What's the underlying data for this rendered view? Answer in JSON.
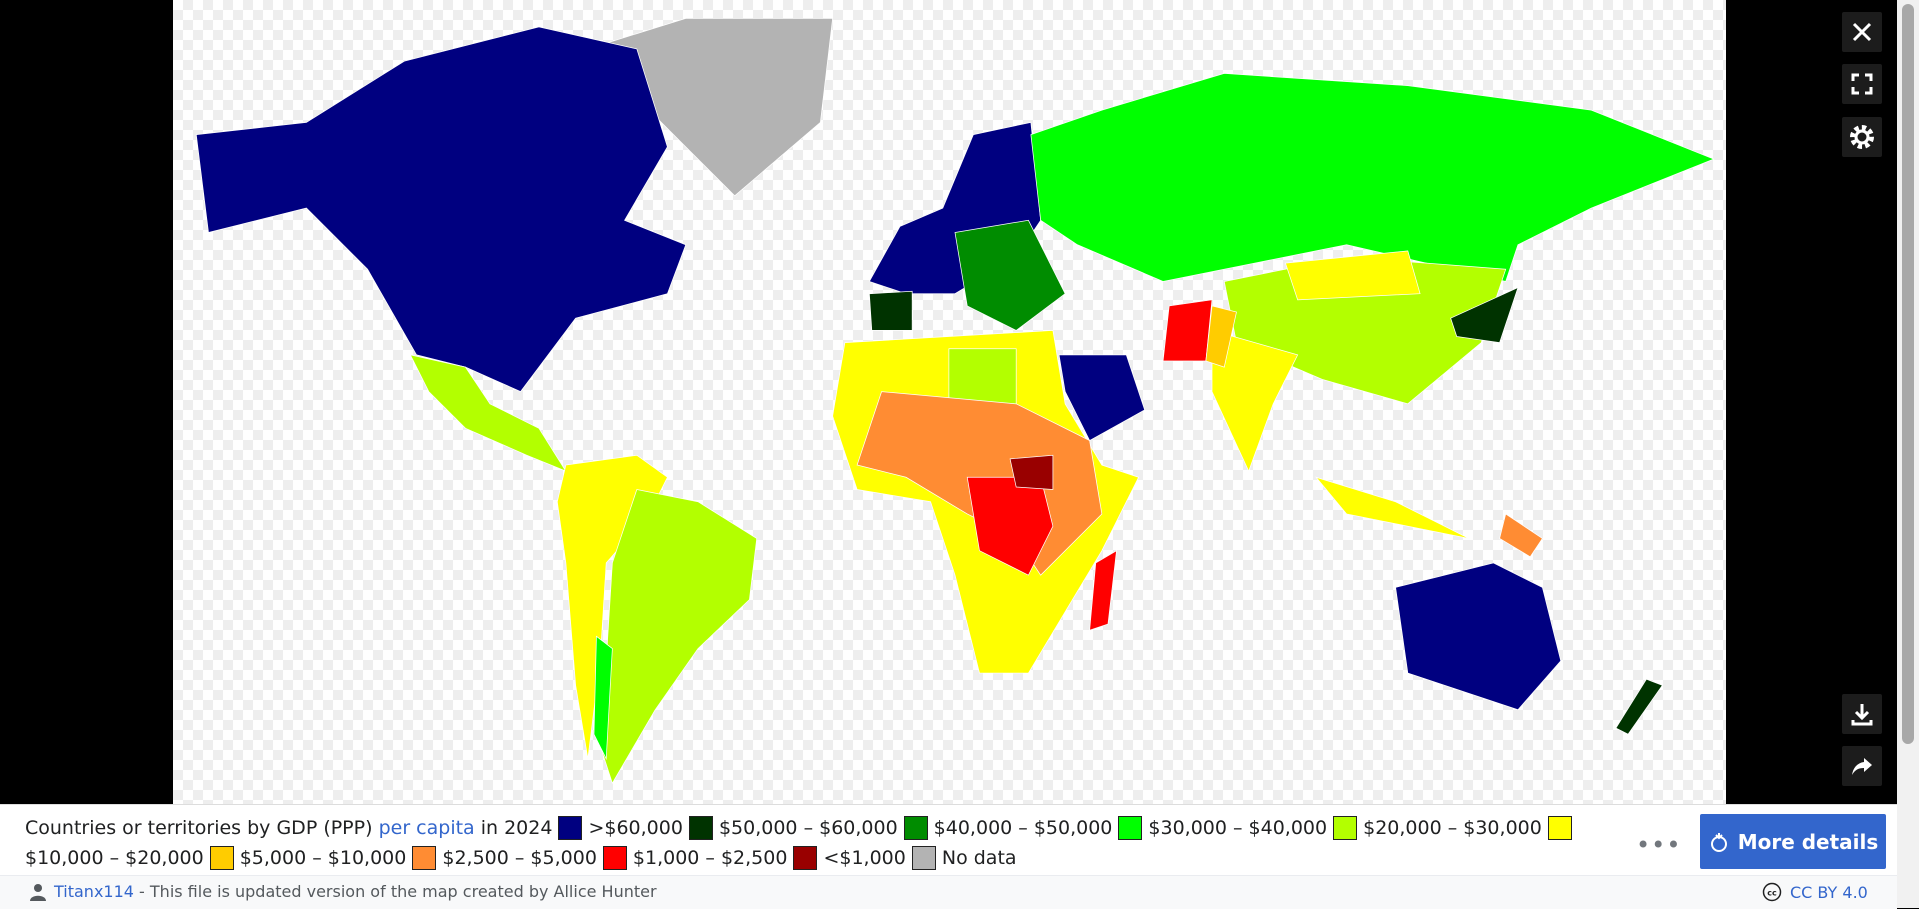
{
  "caption": {
    "title": "Countries or territories by GDP (PPP)",
    "link": "per capita",
    "suffix": "in 2024"
  },
  "legend": [
    {
      "color": "#000080",
      "label": ">$60,000"
    },
    {
      "color": "#003300",
      "label": "$50,000 – $60,000"
    },
    {
      "color": "#008c00",
      "label": "$40,000 – $50,000"
    },
    {
      "color": "#00ff00",
      "label": "$30,000 – $40,000"
    },
    {
      "color": "#b3ff00",
      "label": "$20,000 – $30,000"
    },
    {
      "color": "#ffff00",
      "label": "$10,000 – $20,000"
    },
    {
      "color": "#ffcc00",
      "label": "$5,000 – $10,000"
    },
    {
      "color": "#ff8c33",
      "label": "$2,500 – $5,000"
    },
    {
      "color": "#ff0000",
      "label": "$1,000 – $2,500"
    },
    {
      "color": "#990000",
      "label": "<$1,000"
    },
    {
      "color": "#b3b3b3",
      "label": "No data"
    }
  ],
  "button": "More details",
  "footer": {
    "author": "Titanx114",
    "description": " - This file is updated version of the map created by Allice Hunter",
    "license": "CC BY 4.0"
  }
}
